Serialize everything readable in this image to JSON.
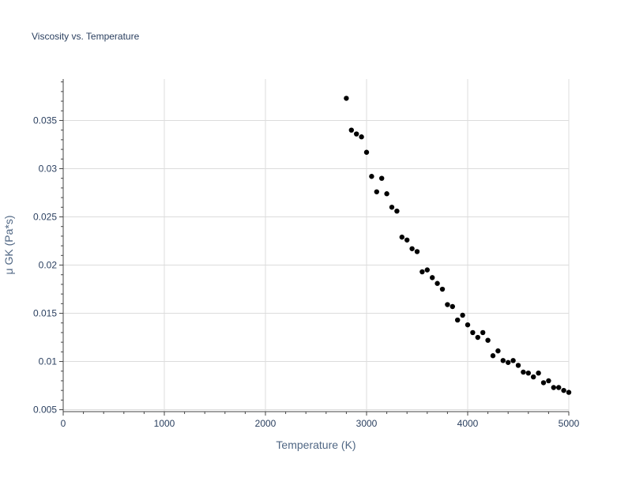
{
  "chart_data": {
    "type": "scatter",
    "title": "Viscosity vs. Temperature",
    "xlabel": "Temperature (K)",
    "ylabel": "μ GK (Pa*s)",
    "xlim": [
      0,
      5000
    ],
    "ylim": [
      0.0048,
      0.0393
    ],
    "x_ticks": [
      0,
      1000,
      2000,
      3000,
      4000,
      5000
    ],
    "x_tick_labels": [
      "0",
      "1000",
      "2000",
      "3000",
      "4000",
      "5000"
    ],
    "x_minor_step": 200,
    "y_ticks": [
      0.005,
      0.01,
      0.015,
      0.02,
      0.025,
      0.03,
      0.035
    ],
    "y_tick_labels": [
      "0.005",
      "0.01",
      "0.015",
      "0.02",
      "0.025",
      "0.03",
      "0.035"
    ],
    "y_minor_step": 0.001,
    "grid": true,
    "marker_color": "#000000",
    "grid_color": "#dcdcdc",
    "text_color": "#2a3f5f",
    "axis_title_color": "#506784",
    "series": [
      {
        "x": [
          2800,
          2850,
          2900,
          2950,
          3000,
          3050,
          3100,
          3150,
          3200,
          3250,
          3300,
          3350,
          3400,
          3450,
          3500,
          3550,
          3600,
          3650,
          3700,
          3750,
          3800,
          3850,
          3900,
          3950,
          4000,
          4050,
          4100,
          4150,
          4200,
          4250,
          4300,
          4350,
          4400,
          4450,
          4500,
          4550,
          4600,
          4650,
          4700,
          4750,
          4800,
          4850,
          4900,
          4950,
          5000
        ],
        "y": [
          0.0373,
          0.034,
          0.0336,
          0.0333,
          0.0317,
          0.0292,
          0.0276,
          0.029,
          0.0274,
          0.026,
          0.0256,
          0.0229,
          0.0226,
          0.0217,
          0.0214,
          0.0193,
          0.0195,
          0.0187,
          0.0181,
          0.0175,
          0.0159,
          0.0157,
          0.0143,
          0.0148,
          0.0138,
          0.013,
          0.0125,
          0.013,
          0.0122,
          0.0106,
          0.0111,
          0.0101,
          0.0099,
          0.0101,
          0.0096,
          0.0089,
          0.0088,
          0.0084,
          0.0088,
          0.0078,
          0.008,
          0.0073,
          0.0073,
          0.007,
          0.0068
        ]
      }
    ]
  }
}
